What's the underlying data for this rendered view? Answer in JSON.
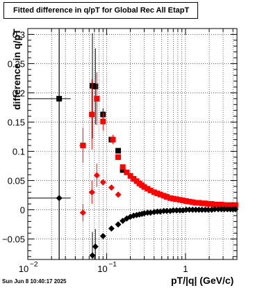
{
  "chart_data": {
    "type": "scatter",
    "title": "Fitted difference in q/pT for Global Rec All EtapT",
    "xlabel": "pT/|q| (GeV/c)",
    "ylabel": "difference in q/pT",
    "xscale": "log",
    "xlim": [
      0.01,
      4.5
    ],
    "ylim": [
      -0.085,
      0.31
    ],
    "grid": true,
    "x_ticks": [
      {
        "v": 0.01,
        "label": "10",
        "exp": "−2"
      },
      {
        "v": 0.1,
        "label": "10",
        "exp": "−1"
      },
      {
        "v": 1,
        "label": "1",
        "exp": ""
      }
    ],
    "y_ticks": [
      {
        "v": -0.05,
        "label": "−0.05"
      },
      {
        "v": 0,
        "label": "0"
      },
      {
        "v": 0.05,
        "label": "0.05"
      },
      {
        "v": 0.1,
        "label": "0.1"
      },
      {
        "v": 0.15,
        "label": "0.15"
      },
      {
        "v": 0.2,
        "label": "0.2"
      },
      {
        "v": 0.25,
        "label": "0.25"
      },
      {
        "v": 0.3,
        "label": "0.3"
      }
    ],
    "series": [
      {
        "marker": "square",
        "color": "#000000",
        "x": [
          0.025,
          0.066,
          0.072,
          0.09,
          0.115,
          0.14,
          0.16
        ],
        "y": [
          0.19,
          0.212,
          0.211,
          0.163,
          0.12,
          0.101,
          0.068
        ],
        "xerr": [
          [
            0.015,
            0.01
          ],
          [
            0.004,
            0.004
          ],
          [
            0.003,
            0.003
          ],
          [
            0.006,
            0.006
          ],
          [
            0.004,
            0.004
          ],
          [
            0.004,
            0.004
          ],
          [
            0.004,
            0.004
          ]
        ],
        "yerr": [
          0.31,
          0.09,
          0.065,
          0.01,
          0.005,
          0.004,
          0.003
        ]
      },
      {
        "marker": "square",
        "color": "#ff0000",
        "x": [
          0.05,
          0.065,
          0.075,
          0.09,
          0.12,
          0.14,
          0.16,
          0.18,
          0.2,
          0.22,
          0.24,
          0.26,
          0.28,
          0.3,
          0.33,
          0.36,
          0.4,
          0.44,
          0.48,
          0.53,
          0.58,
          0.64,
          0.7,
          0.77,
          0.85,
          0.93,
          1.02,
          1.12,
          1.23,
          1.35,
          1.48,
          1.62,
          1.78,
          1.95,
          2.15,
          2.35,
          2.6,
          2.85,
          3.1,
          3.4,
          3.7,
          4.0,
          4.3
        ],
        "y": [
          0.11,
          0.163,
          0.19,
          0.151,
          0.12,
          0.09,
          0.073,
          0.064,
          0.058,
          0.053,
          0.049,
          0.045,
          0.042,
          0.039,
          0.036,
          0.033,
          0.03,
          0.028,
          0.026,
          0.024,
          0.022,
          0.02,
          0.019,
          0.018,
          0.017,
          0.016,
          0.015,
          0.014,
          0.013,
          0.012,
          0.012,
          0.011,
          0.011,
          0.01,
          0.01,
          0.009,
          0.009,
          0.009,
          0.008,
          0.008,
          0.008,
          0.008,
          0.008
        ],
        "xerr": [
          [
            0.005,
            0.005
          ],
          [
            0.003,
            0.003
          ],
          [
            0.003,
            0.003
          ],
          [
            0.004,
            0.004
          ],
          [
            0.004,
            0.004
          ],
          [
            0.004,
            0.004
          ],
          [
            0.004,
            0.004
          ],
          [
            0.004,
            0.004
          ],
          [
            0.004,
            0.004
          ],
          [
            0.004,
            0.004
          ],
          [
            0.004,
            0.004
          ],
          [
            0.004,
            0.004
          ],
          [
            0.004,
            0.004
          ],
          [
            0.004,
            0.004
          ],
          [
            0.004,
            0.004
          ],
          [
            0.004,
            0.004
          ],
          [
            0.004,
            0.004
          ],
          [
            0.004,
            0.004
          ],
          [
            0.004,
            0.004
          ],
          [
            0.004,
            0.004
          ],
          [
            0.004,
            0.004
          ],
          [
            0.004,
            0.004
          ],
          [
            0.004,
            0.004
          ],
          [
            0.004,
            0.004
          ],
          [
            0.004,
            0.004
          ],
          [
            0.004,
            0.004
          ],
          [
            0.004,
            0.004
          ],
          [
            0.004,
            0.004
          ],
          [
            0.004,
            0.004
          ],
          [
            0.004,
            0.004
          ],
          [
            0.004,
            0.004
          ],
          [
            0.004,
            0.004
          ],
          [
            0.004,
            0.004
          ],
          [
            0.004,
            0.004
          ],
          [
            0.004,
            0.004
          ],
          [
            0.004,
            0.004
          ],
          [
            0.004,
            0.004
          ],
          [
            0.004,
            0.004
          ],
          [
            0.004,
            0.004
          ],
          [
            0.004,
            0.004
          ],
          [
            0.004,
            0.004
          ],
          [
            0.004,
            0.004
          ],
          [
            0.004,
            0.004
          ]
        ],
        "yerr": [
          0.03,
          0.06,
          0.045,
          0.015,
          0.008,
          0.005,
          0.003,
          0.003,
          0.003,
          0.003,
          0.003,
          0.003,
          0.003,
          0.003,
          0.003,
          0.003,
          0.003,
          0.003,
          0.003,
          0.003,
          0.003,
          0.003,
          0.003,
          0.003,
          0.003,
          0.003,
          0.003,
          0.003,
          0.003,
          0.003,
          0.003,
          0.003,
          0.003,
          0.003,
          0.003,
          0.003,
          0.003,
          0.003,
          0.003,
          0.003,
          0.003,
          0.003,
          0.003
        ]
      },
      {
        "marker": "diamond",
        "color": "#ff0000",
        "x": [
          0.05,
          0.065,
          0.075,
          0.09,
          0.115,
          0.14
        ],
        "y": [
          -0.005,
          0.03,
          0.059,
          0.047,
          0.038,
          0.026
        ],
        "xerr": [
          [
            0.004,
            0.004
          ],
          [
            0.003,
            0.003
          ],
          [
            0.003,
            0.003
          ],
          [
            0.004,
            0.004
          ],
          [
            0.004,
            0.004
          ],
          [
            0.004,
            0.004
          ]
        ],
        "yerr": [
          0.015,
          0.02,
          0.02,
          0.004,
          0.003,
          0.002
        ]
      },
      {
        "marker": "diamond",
        "color": "#000000",
        "x": [
          0.025,
          0.066,
          0.072,
          0.09,
          0.115,
          0.14,
          0.16,
          0.18,
          0.2,
          0.22,
          0.24,
          0.26,
          0.28,
          0.3,
          0.33,
          0.36,
          0.4,
          0.44,
          0.48,
          0.53,
          0.58,
          0.64,
          0.7,
          0.77,
          0.85,
          0.93,
          1.02,
          1.12,
          1.23,
          1.35,
          1.48,
          1.62,
          1.78,
          1.95,
          2.15,
          2.35,
          2.6,
          2.85,
          3.1,
          3.4,
          3.7,
          4.0,
          4.3
        ],
        "y": [
          0.02,
          -0.078,
          -0.063,
          -0.045,
          -0.032,
          -0.025,
          -0.019,
          -0.015,
          -0.012,
          -0.01,
          -0.009,
          -0.008,
          -0.007,
          -0.006,
          -0.005,
          -0.005,
          -0.004,
          -0.003,
          -0.003,
          -0.002,
          -0.002,
          -0.002,
          -0.001,
          -0.001,
          -0.001,
          -0.001,
          0.0,
          0.0,
          0.0,
          0.0,
          0.0,
          0.0,
          0.0,
          0.0,
          0.0,
          0.001,
          0.001,
          0.001,
          0.001,
          0.001,
          0.001,
          0.001,
          0.001
        ],
        "xerr": [
          [
            0.015,
            0.01
          ],
          [
            0.004,
            0.004
          ],
          [
            0.003,
            0.003
          ],
          [
            0.004,
            0.004
          ],
          [
            0.004,
            0.004
          ],
          [
            0.004,
            0.004
          ],
          [
            0.004,
            0.004
          ],
          [
            0.004,
            0.004
          ],
          [
            0.004,
            0.004
          ],
          [
            0.004,
            0.004
          ],
          [
            0.004,
            0.004
          ],
          [
            0.004,
            0.004
          ],
          [
            0.004,
            0.004
          ],
          [
            0.004,
            0.004
          ],
          [
            0.004,
            0.004
          ],
          [
            0.004,
            0.004
          ],
          [
            0.004,
            0.004
          ],
          [
            0.004,
            0.004
          ],
          [
            0.004,
            0.004
          ],
          [
            0.004,
            0.004
          ],
          [
            0.004,
            0.004
          ],
          [
            0.004,
            0.004
          ],
          [
            0.004,
            0.004
          ],
          [
            0.004,
            0.004
          ],
          [
            0.004,
            0.004
          ],
          [
            0.004,
            0.004
          ],
          [
            0.004,
            0.004
          ],
          [
            0.004,
            0.004
          ],
          [
            0.004,
            0.004
          ],
          [
            0.004,
            0.004
          ],
          [
            0.004,
            0.004
          ],
          [
            0.004,
            0.004
          ],
          [
            0.004,
            0.004
          ],
          [
            0.004,
            0.004
          ],
          [
            0.004,
            0.004
          ],
          [
            0.004,
            0.004
          ],
          [
            0.004,
            0.004
          ],
          [
            0.004,
            0.004
          ],
          [
            0.004,
            0.004
          ],
          [
            0.004,
            0.004
          ],
          [
            0.004,
            0.004
          ],
          [
            0.004,
            0.004
          ],
          [
            0.004,
            0.004
          ]
        ],
        "yerr": [
          0.3,
          0.04,
          0.03,
          0.004,
          0.003,
          0.002,
          0.002,
          0.002,
          0.002,
          0.002,
          0.002,
          0.002,
          0.002,
          0.002,
          0.002,
          0.002,
          0.002,
          0.002,
          0.002,
          0.002,
          0.002,
          0.002,
          0.002,
          0.002,
          0.002,
          0.002,
          0.002,
          0.002,
          0.002,
          0.002,
          0.002,
          0.002,
          0.002,
          0.002,
          0.002,
          0.002,
          0.002,
          0.002,
          0.002,
          0.002,
          0.002,
          0.002,
          0.002
        ]
      }
    ]
  },
  "timestamp": "Sun Jun  8 10:40:17 2025"
}
